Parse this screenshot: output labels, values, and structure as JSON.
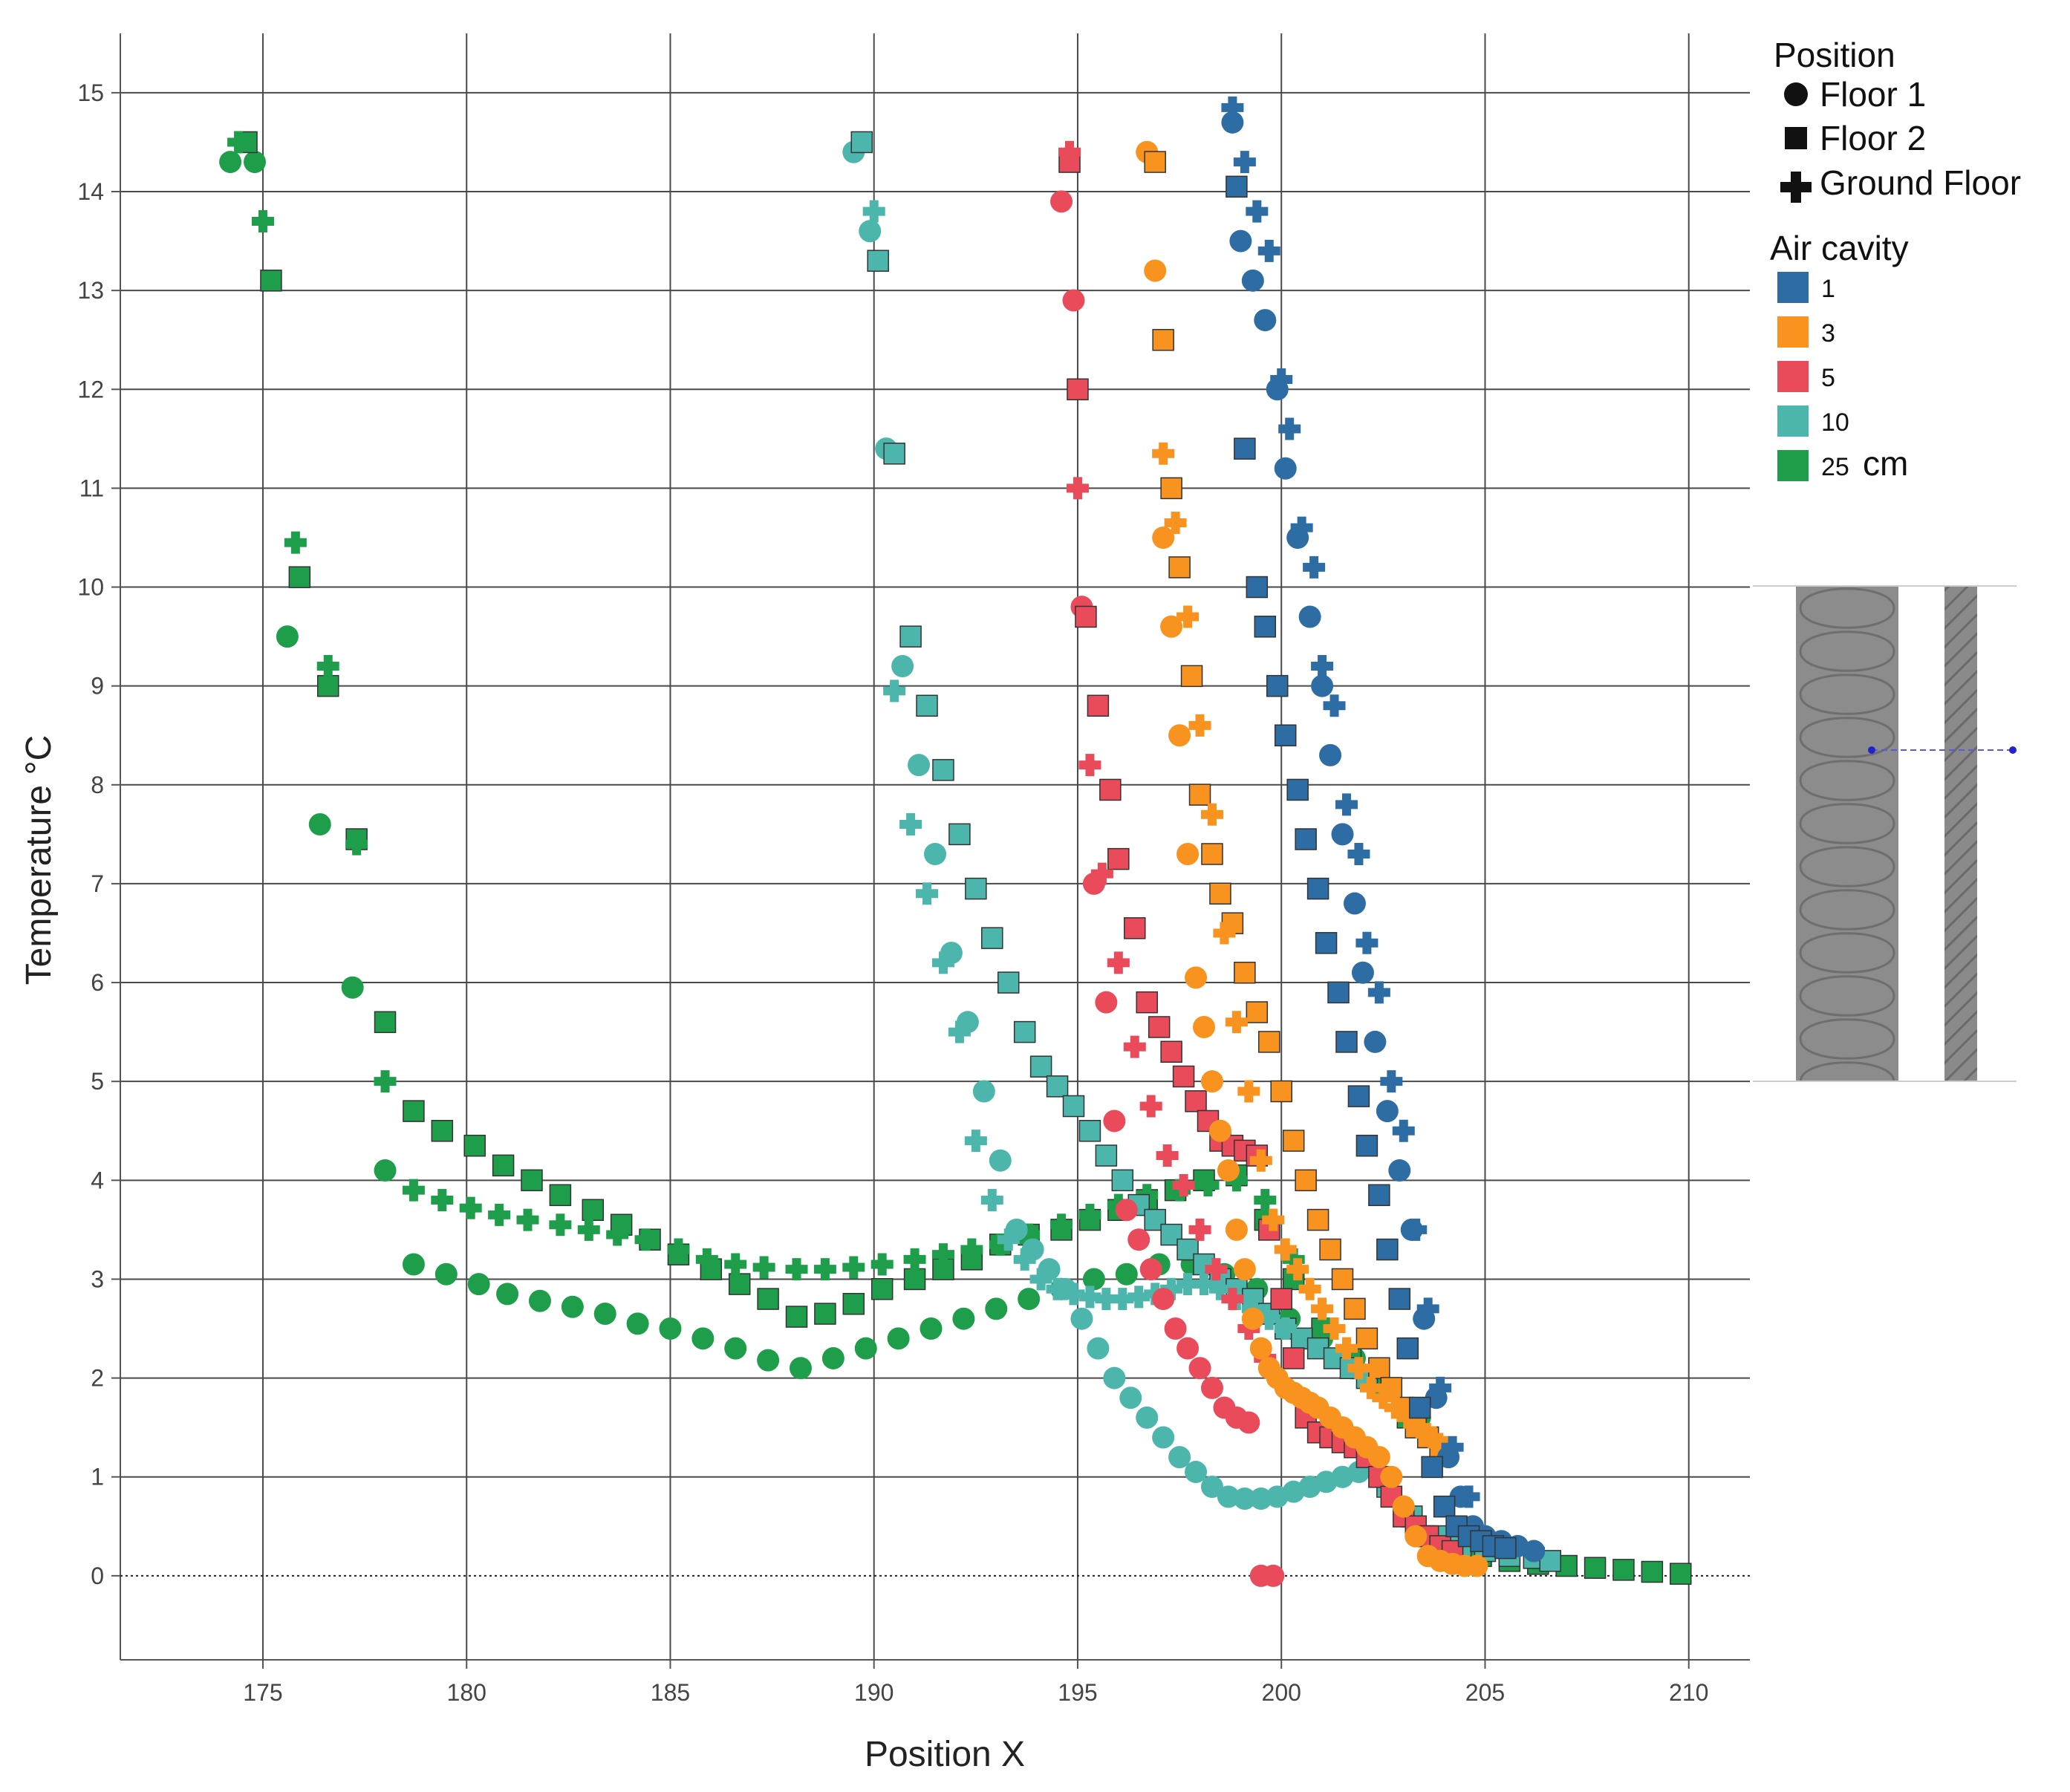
{
  "chart_data": {
    "type": "scatter",
    "title": "",
    "xlabel": "Position X",
    "ylabel": "Temperature °C",
    "xlim": [
      171.5,
      211.5
    ],
    "ylim": [
      -0.85,
      15.6
    ],
    "xticks": [
      175,
      180,
      185,
      190,
      195,
      200,
      205,
      210
    ],
    "yticks": [
      0,
      1,
      2,
      3,
      4,
      5,
      6,
      7,
      8,
      9,
      10,
      11,
      12,
      13,
      14,
      15
    ],
    "grid": true,
    "reference_line": {
      "y": 0,
      "style": "dotted"
    },
    "legend": {
      "placement": "right",
      "position_title": "Position",
      "shapes": [
        {
          "key": "circle",
          "label": "Floor 1"
        },
        {
          "key": "square",
          "label": "Floor 2"
        },
        {
          "key": "plus",
          "label": "Ground Floor"
        }
      ],
      "cavity_title": "Air cavity",
      "cavities": [
        {
          "key": "1",
          "label": "1",
          "color": "#2E6DA4"
        },
        {
          "key": "3",
          "label": "3",
          "color": "#F7931E"
        },
        {
          "key": "5",
          "label": "5",
          "color": "#E94B5A"
        },
        {
          "key": "10",
          "label": "10",
          "color": "#4DB6AC"
        },
        {
          "key": "25",
          "label": "25",
          "color": "#1E9E4A",
          "unit": "cm"
        }
      ]
    },
    "series": [
      {
        "name": "25 cm Floor 1",
        "cavity": "25",
        "shape": "circle",
        "x": [
          174.2,
          174.8,
          175.6,
          176.4,
          177.2,
          178.0,
          178.7,
          179.5,
          180.3,
          181.0,
          181.8,
          182.6,
          183.4,
          184.2,
          185.0,
          185.8,
          186.6,
          187.4,
          188.2,
          189.0,
          189.8,
          190.6,
          191.4,
          192.2,
          193.0,
          193.8,
          194.6,
          195.4,
          196.2,
          197.0,
          197.8,
          198.6,
          199.4,
          200.2,
          201.0,
          201.8,
          202.6,
          203.4
        ],
        "y": [
          14.3,
          14.3,
          9.5,
          7.6,
          5.95,
          4.1,
          3.15,
          3.05,
          2.95,
          2.85,
          2.78,
          2.72,
          2.65,
          2.55,
          2.5,
          2.4,
          2.3,
          2.18,
          2.1,
          2.2,
          2.3,
          2.4,
          2.5,
          2.6,
          2.7,
          2.8,
          2.9,
          3.0,
          3.05,
          3.15,
          3.15,
          3.05,
          2.9,
          2.6,
          2.4,
          2.2,
          1.9,
          1.6
        ]
      },
      {
        "name": "25 cm Floor 2",
        "cavity": "25",
        "shape": "square",
        "x": [
          174.6,
          175.2,
          175.9,
          176.6,
          177.3,
          178.0,
          178.7,
          179.4,
          180.2,
          180.9,
          181.6,
          182.3,
          183.1,
          183.8,
          184.5,
          185.2,
          186.0,
          186.7,
          187.4,
          188.1,
          188.8,
          189.5,
          190.2,
          191.0,
          191.7,
          192.4,
          193.1,
          193.8,
          194.6,
          195.3,
          196.0,
          196.7,
          197.4,
          198.1,
          198.9,
          199.6,
          200.3,
          201.0,
          201.7,
          202.4,
          203.1
        ],
        "y": [
          14.5,
          13.1,
          10.1,
          9.0,
          7.45,
          5.6,
          4.7,
          4.5,
          4.35,
          4.15,
          4.0,
          3.85,
          3.7,
          3.55,
          3.4,
          3.25,
          3.1,
          2.95,
          2.8,
          2.62,
          2.65,
          2.75,
          2.9,
          3.0,
          3.1,
          3.2,
          3.35,
          3.45,
          3.5,
          3.6,
          3.7,
          3.8,
          3.9,
          4.0,
          4.05,
          3.6,
          3.0,
          2.5,
          2.2,
          1.9,
          1.6
        ]
      },
      {
        "name": "25 cm Ground Floor",
        "cavity": "25",
        "shape": "plus",
        "x": [
          174.4,
          175.0,
          175.8,
          176.6,
          177.3,
          178.0,
          178.7,
          179.4,
          180.1,
          180.8,
          181.5,
          182.3,
          183.0,
          183.7,
          184.4,
          185.2,
          185.9,
          186.6,
          187.3,
          188.1,
          188.8,
          189.5,
          190.2,
          191.0,
          191.7,
          192.4,
          193.1,
          193.8,
          194.6,
          195.3,
          196.0,
          196.7,
          197.5,
          198.2,
          198.9,
          199.6,
          200.3,
          201.1,
          201.8,
          202.5
        ],
        "y": [
          14.5,
          13.7,
          10.45,
          9.2,
          7.4,
          5.0,
          3.9,
          3.8,
          3.72,
          3.65,
          3.6,
          3.55,
          3.5,
          3.45,
          3.4,
          3.3,
          3.2,
          3.15,
          3.12,
          3.1,
          3.1,
          3.12,
          3.15,
          3.2,
          3.25,
          3.3,
          3.35,
          3.45,
          3.55,
          3.65,
          3.75,
          3.85,
          3.9,
          3.95,
          4.0,
          3.8,
          3.2,
          2.5,
          2.1,
          1.9
        ]
      },
      {
        "name": "25 cm tail",
        "cavity": "25",
        "shape": "square",
        "x": [
          203.5,
          204.2,
          204.9,
          205.6,
          206.3,
          207.0,
          207.7,
          208.4,
          209.1,
          209.8
        ],
        "y": [
          0.4,
          0.3,
          0.2,
          0.15,
          0.12,
          0.1,
          0.08,
          0.06,
          0.04,
          0.02
        ]
      },
      {
        "name": "10 cm Floor 1",
        "cavity": "10",
        "shape": "circle",
        "x": [
          189.5,
          189.9,
          190.3,
          190.7,
          191.1,
          191.5,
          191.9,
          192.3,
          192.7,
          193.1,
          193.5,
          193.9,
          194.3,
          194.7,
          195.1,
          195.5,
          195.9,
          196.3,
          196.7,
          197.1,
          197.5,
          197.9,
          198.3,
          198.7,
          199.1,
          199.5,
          199.9,
          200.3,
          200.7,
          201.1,
          201.5,
          201.9
        ],
        "y": [
          14.4,
          13.6,
          11.4,
          9.2,
          8.2,
          7.3,
          6.3,
          5.6,
          4.9,
          4.2,
          3.5,
          3.3,
          3.1,
          2.9,
          2.6,
          2.3,
          2.0,
          1.8,
          1.6,
          1.4,
          1.2,
          1.05,
          0.9,
          0.8,
          0.78,
          0.78,
          0.8,
          0.85,
          0.9,
          0.95,
          1.0,
          1.05
        ]
      },
      {
        "name": "10 cm Floor 2",
        "cavity": "10",
        "shape": "square",
        "x": [
          189.7,
          190.1,
          190.5,
          190.9,
          191.3,
          191.7,
          192.1,
          192.5,
          192.9,
          193.3,
          193.7,
          194.1,
          194.5,
          194.9,
          195.3,
          195.7,
          196.1,
          196.5,
          196.9,
          197.3,
          197.7,
          198.1,
          198.5,
          198.9,
          199.3,
          199.7,
          200.1,
          200.5,
          200.9,
          201.3,
          201.7,
          202.1
        ],
        "y": [
          14.5,
          13.3,
          11.35,
          9.5,
          8.8,
          8.15,
          7.5,
          6.95,
          6.45,
          6.0,
          5.5,
          5.15,
          4.95,
          4.75,
          4.5,
          4.25,
          4.0,
          3.75,
          3.6,
          3.45,
          3.3,
          3.15,
          3.0,
          2.9,
          2.8,
          2.65,
          2.5,
          2.4,
          2.3,
          2.2,
          2.1,
          2.0
        ]
      },
      {
        "name": "10 cm Ground Floor",
        "cavity": "10",
        "shape": "plus",
        "x": [
          190.0,
          190.5,
          190.9,
          191.3,
          191.7,
          192.1,
          192.5,
          192.9,
          193.3,
          193.7,
          194.1,
          194.5,
          194.9,
          195.3,
          195.7,
          196.1,
          196.5,
          196.9,
          197.3,
          197.7,
          198.1,
          198.5,
          198.9,
          199.3,
          199.7,
          200.1
        ],
        "y": [
          13.8,
          8.95,
          7.6,
          6.9,
          6.2,
          5.5,
          4.4,
          3.8,
          3.4,
          3.2,
          3.0,
          2.9,
          2.85,
          2.82,
          2.8,
          2.8,
          2.82,
          2.85,
          2.9,
          2.95,
          2.95,
          2.9,
          2.8,
          2.7,
          2.6,
          2.5
        ]
      },
      {
        "name": "10 cm tail",
        "cavity": "10",
        "shape": "square",
        "x": [
          202.6,
          203.2,
          203.8,
          204.4,
          205.0,
          205.6,
          206.2,
          206.6
        ],
        "y": [
          0.9,
          0.6,
          0.4,
          0.3,
          0.25,
          0.2,
          0.18,
          0.15
        ]
      },
      {
        "name": "5 cm Floor 1",
        "cavity": "5",
        "shape": "circle",
        "x": [
          194.6,
          194.9,
          195.1,
          195.4,
          195.7,
          195.9,
          196.2,
          196.5,
          196.8,
          197.1,
          197.4,
          197.7,
          198.0,
          198.3,
          198.6,
          198.9,
          199.2,
          199.5,
          199.8
        ],
        "y": [
          13.9,
          12.9,
          9.8,
          7.0,
          5.8,
          4.6,
          3.7,
          3.4,
          3.1,
          2.8,
          2.5,
          2.3,
          2.1,
          1.9,
          1.7,
          1.6,
          1.55,
          0.0,
          0.0
        ]
      },
      {
        "name": "5 cm Floor 2",
        "cavity": "5",
        "shape": "square",
        "x": [
          194.8,
          195.0,
          195.2,
          195.5,
          195.8,
          196.0,
          196.4,
          196.7,
          197.0,
          197.3,
          197.6,
          197.9,
          198.2,
          198.5,
          198.8,
          199.1,
          199.4,
          199.7,
          200.0,
          200.3,
          200.6,
          200.9,
          201.2,
          201.5,
          201.8,
          202.1,
          202.4,
          202.7,
          203.0,
          203.3,
          203.6,
          203.9,
          204.2
        ],
        "y": [
          14.3,
          12.0,
          9.7,
          8.8,
          7.95,
          7.25,
          6.55,
          5.8,
          5.55,
          5.3,
          5.05,
          4.8,
          4.6,
          4.4,
          4.35,
          4.3,
          4.25,
          3.5,
          2.8,
          2.2,
          1.6,
          1.45,
          1.4,
          1.35,
          1.3,
          1.2,
          1.0,
          0.8,
          0.6,
          0.5,
          0.4,
          0.3,
          0.25
        ]
      },
      {
        "name": "5 cm Ground Floor",
        "cavity": "5",
        "shape": "plus",
        "x": [
          194.8,
          195.0,
          195.3,
          195.6,
          196.0,
          196.4,
          196.8,
          197.2,
          197.6,
          198.0,
          198.4,
          198.8,
          199.2,
          199.6
        ],
        "y": [
          14.4,
          11.0,
          8.2,
          7.1,
          6.2,
          5.35,
          4.75,
          4.25,
          3.95,
          3.5,
          3.1,
          2.8,
          2.5,
          2.2
        ]
      },
      {
        "name": "3 cm Floor 1",
        "cavity": "3",
        "shape": "circle",
        "x": [
          196.7,
          196.9,
          197.1,
          197.3,
          197.5,
          197.7,
          197.9,
          198.1,
          198.3,
          198.5,
          198.7,
          198.9,
          199.1,
          199.3,
          199.5,
          199.7,
          199.9,
          200.1,
          200.3,
          200.5,
          200.7,
          200.9,
          201.2,
          201.5,
          201.8,
          202.1,
          202.4,
          202.7,
          203.0,
          203.3,
          203.6,
          203.9,
          204.2,
          204.5,
          204.8
        ],
        "y": [
          14.4,
          13.2,
          10.5,
          9.6,
          8.5,
          7.3,
          6.05,
          5.55,
          5.0,
          4.5,
          4.1,
          3.5,
          3.1,
          2.6,
          2.3,
          2.1,
          2.0,
          1.9,
          1.85,
          1.8,
          1.75,
          1.7,
          1.6,
          1.5,
          1.4,
          1.3,
          1.2,
          1.0,
          0.7,
          0.4,
          0.2,
          0.15,
          0.12,
          0.1,
          0.1
        ]
      },
      {
        "name": "3 cm Floor 2",
        "cavity": "3",
        "shape": "square",
        "x": [
          196.9,
          197.1,
          197.3,
          197.5,
          197.8,
          198.0,
          198.3,
          198.5,
          198.8,
          199.1,
          199.4,
          199.7,
          200.0,
          200.3,
          200.6,
          200.9,
          201.2,
          201.5,
          201.8,
          202.1,
          202.4,
          202.7,
          203.0,
          203.3,
          203.6,
          203.9
        ],
        "y": [
          14.3,
          12.5,
          11.0,
          10.2,
          9.1,
          7.9,
          7.3,
          6.9,
          6.6,
          6.1,
          5.7,
          5.4,
          4.9,
          4.4,
          4.0,
          3.6,
          3.3,
          3.0,
          2.7,
          2.4,
          2.1,
          1.9,
          1.7,
          1.5,
          1.4,
          1.3
        ]
      },
      {
        "name": "3 cm Ground Floor",
        "cavity": "3",
        "shape": "plus",
        "x": [
          197.1,
          197.4,
          197.7,
          198.0,
          198.3,
          198.6,
          198.9,
          199.2,
          199.5,
          199.8,
          200.1,
          200.4,
          200.7,
          201.0,
          201.3,
          201.6,
          201.9,
          202.2,
          202.5,
          202.8,
          203.1,
          203.4,
          203.7,
          204.0
        ],
        "y": [
          11.35,
          10.65,
          9.7,
          8.6,
          7.7,
          6.5,
          5.6,
          4.9,
          4.2,
          3.6,
          3.3,
          3.1,
          2.9,
          2.7,
          2.5,
          2.3,
          2.1,
          1.9,
          1.8,
          1.7,
          1.6,
          1.5,
          1.4,
          1.3
        ]
      },
      {
        "name": "1 cm Floor 1",
        "cavity": "1",
        "shape": "circle",
        "x": [
          198.8,
          199.0,
          199.3,
          199.6,
          199.9,
          200.1,
          200.4,
          200.7,
          201.0,
          201.2,
          201.5,
          201.8,
          202.0,
          202.3,
          202.6,
          202.9,
          203.2,
          203.5,
          203.8,
          204.1,
          204.4,
          204.7,
          205.0,
          205.4,
          205.8,
          206.2
        ],
        "y": [
          14.7,
          13.5,
          13.1,
          12.7,
          12.0,
          11.2,
          10.5,
          9.7,
          9.0,
          8.3,
          7.5,
          6.8,
          6.1,
          5.4,
          4.7,
          4.1,
          3.5,
          2.6,
          1.8,
          1.2,
          0.8,
          0.5,
          0.4,
          0.35,
          0.3,
          0.25
        ]
      },
      {
        "name": "1 cm Floor 2",
        "cavity": "1",
        "shape": "square",
        "x": [
          198.9,
          199.1,
          199.4,
          199.6,
          199.9,
          200.1,
          200.4,
          200.6,
          200.9,
          201.1,
          201.4,
          201.6,
          201.9,
          202.1,
          202.4,
          202.6,
          202.9,
          203.1,
          203.4,
          203.7,
          204.0,
          204.3,
          204.6,
          204.9,
          205.2,
          205.5
        ],
        "y": [
          14.05,
          11.4,
          10.0,
          9.6,
          9.0,
          8.5,
          7.95,
          7.45,
          6.95,
          6.4,
          5.9,
          5.4,
          4.85,
          4.35,
          3.85,
          3.3,
          2.8,
          2.3,
          1.7,
          1.1,
          0.7,
          0.5,
          0.4,
          0.35,
          0.3,
          0.28
        ]
      },
      {
        "name": "1 cm Ground Floor",
        "cavity": "1",
        "shape": "plus",
        "x": [
          198.8,
          199.1,
          199.4,
          199.7,
          200.0,
          200.2,
          200.5,
          200.8,
          201.0,
          201.3,
          201.6,
          201.9,
          202.1,
          202.4,
          202.7,
          203.0,
          203.3,
          203.6,
          203.9,
          204.2,
          204.6
        ],
        "y": [
          14.85,
          14.3,
          13.8,
          13.4,
          12.1,
          11.6,
          10.6,
          10.2,
          9.2,
          8.8,
          7.8,
          7.3,
          6.4,
          5.9,
          5.0,
          4.5,
          3.5,
          2.7,
          1.9,
          1.3,
          0.8
        ]
      }
    ]
  }
}
